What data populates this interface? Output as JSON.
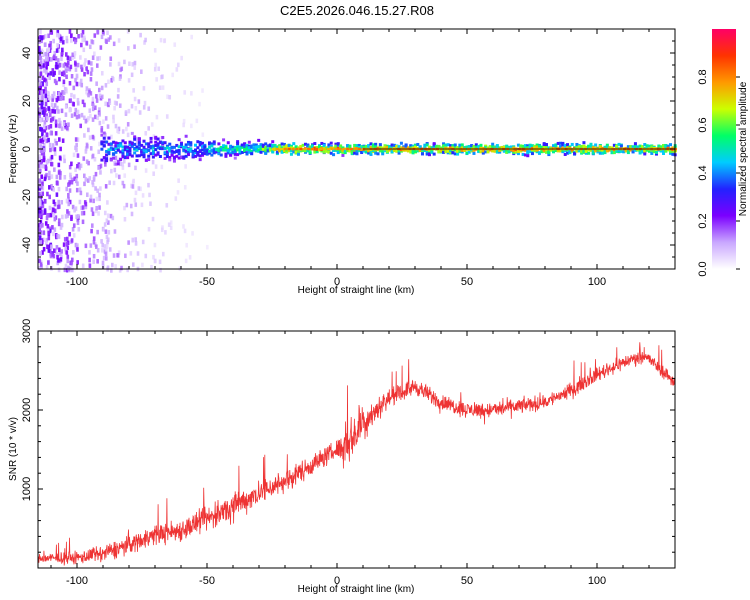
{
  "title": "C2E5.2026.046.15.27.R08",
  "chart_data": [
    {
      "type": "heatmap",
      "name": "spectrogram",
      "xlabel": "Height of straight line (km)",
      "ylabel": "Frequency (Hz)",
      "xlim": [
        -115,
        130
      ],
      "ylim": [
        -50,
        50
      ],
      "x_ticks": [
        -100,
        -50,
        0,
        50,
        100
      ],
      "y_ticks": [
        -40,
        -20,
        0,
        20,
        40
      ],
      "colorbar": {
        "label": "Normalized spectral amplitude",
        "range": [
          0.0,
          1.0
        ],
        "ticks": [
          0.0,
          0.2,
          0.4,
          0.6,
          0.8
        ],
        "colors": [
          "#ffffff",
          "#c9a7ff",
          "#7b00ff",
          "#2222ff",
          "#00ccff",
          "#00ff66",
          "#ccff00",
          "#ff9900",
          "#ff3300",
          "#ff0066"
        ]
      },
      "band": {
        "center_hz": 0,
        "description_points": [
          {
            "x": -90,
            "half_width_hz": 9,
            "peak": 0.45
          },
          {
            "x": -60,
            "half_width_hz": 6,
            "peak": 0.5
          },
          {
            "x": -30,
            "half_width_hz": 4,
            "peak": 0.6
          },
          {
            "x": -20,
            "half_width_hz": 3,
            "peak": 0.9
          },
          {
            "x": 0,
            "half_width_hz": 3,
            "peak": 0.85
          },
          {
            "x": 50,
            "half_width_hz": 3,
            "peak": 0.85
          },
          {
            "x": 130,
            "half_width_hz": 3,
            "peak": 0.85
          }
        ],
        "noise_region_x": [
          -115,
          -85
        ]
      }
    },
    {
      "type": "line",
      "name": "snr",
      "xlabel": "Height of straight line (km)",
      "ylabel": "SNR (10 * v/v)",
      "xlim": [
        -115,
        130
      ],
      "ylim": [
        0,
        3000
      ],
      "x_ticks": [
        -100,
        -50,
        0,
        50,
        100
      ],
      "y_ticks": [
        1000,
        2000,
        3000
      ],
      "color": "#ee3333",
      "trend": {
        "x": [
          -115,
          -100,
          -90,
          -80,
          -70,
          -60,
          -50,
          -40,
          -30,
          -20,
          -10,
          0,
          5,
          10,
          20,
          30,
          40,
          50,
          60,
          70,
          80,
          90,
          100,
          110,
          118,
          125,
          130
        ],
        "y": [
          120,
          130,
          180,
          300,
          420,
          480,
          620,
          780,
          950,
          1100,
          1300,
          1500,
          1600,
          1850,
          2150,
          2300,
          2100,
          2000,
          2000,
          2050,
          2100,
          2250,
          2450,
          2600,
          2700,
          2500,
          2350
        ]
      },
      "noise_amplitude": [
        {
          "x": -115,
          "amp": 120
        },
        {
          "x": -80,
          "amp": 250
        },
        {
          "x": -40,
          "amp": 350
        },
        {
          "x": 0,
          "amp": 250
        },
        {
          "x": 5,
          "amp": 600
        },
        {
          "x": 20,
          "amp": 220
        },
        {
          "x": 130,
          "amp": 180
        }
      ]
    }
  ]
}
